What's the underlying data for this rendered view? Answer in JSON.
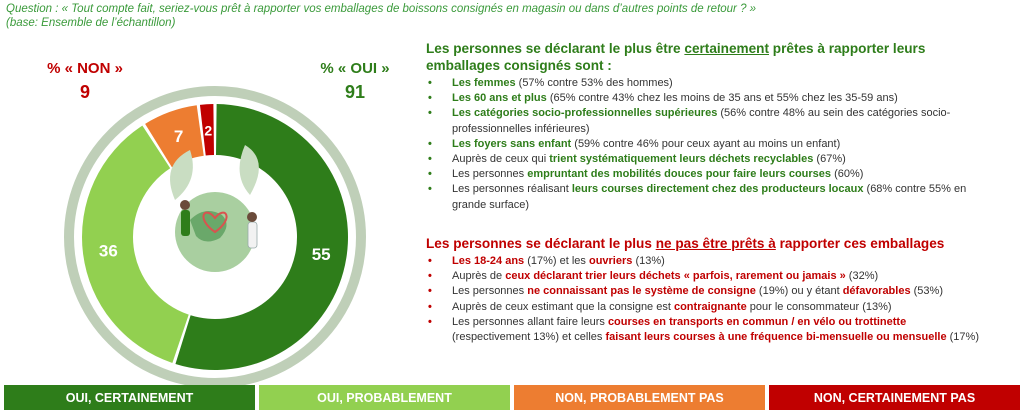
{
  "header": {
    "question": "Question : « Tout compte fait, seriez-vous prêt à rapporter vos emballages de boissons consignés en magasin ou dans d’autres points de retour ? »",
    "base": "(base: Ensemble de l’échantillon)"
  },
  "totals": {
    "non_label": "% « NON »",
    "non_value": "9",
    "oui_label": "% « OUI »",
    "oui_value": "91"
  },
  "colors": {
    "oui_certainement": "#2e7d1a",
    "oui_probablement": "#92d050",
    "non_probablement_pas": "#ed7d31",
    "non_certainement_pas": "#c00000",
    "ring": "#bfcfb8"
  },
  "chart_data": {
    "type": "pie",
    "donut": true,
    "categories": [
      "OUI, CERTAINEMENT",
      "OUI, PROBABLEMENT",
      "NON, PROBABLEMENT PAS",
      "NON, CERTAINEMENT PAS"
    ],
    "values": [
      55,
      36,
      7,
      2
    ],
    "labels": [
      "55",
      "36",
      "7",
      "2"
    ],
    "legend_position": "bottom"
  },
  "positive": {
    "title_before": "Les personnes se déclarant le plus être ",
    "title_underlined": "certainement",
    "title_after": " prêtes à rapporter leurs emballages consignés sont  :",
    "items": [
      {
        "bold": "Les femmes",
        "text": " (57% contre 53% des hommes)"
      },
      {
        "bold": "Les 60 ans et plus",
        "text": " (65% contre 43% chez les moins de 35 ans et 55% chez les 35-59 ans)"
      },
      {
        "bold": "Les catégories socio-professionnelles supérieures",
        "text": " (56% contre 48% au sein des catégories socio-professionnelles inférieures)"
      },
      {
        "bold": "Les foyers sans enfant",
        "text": " (59% contre 46% pour ceux ayant au moins un enfant)"
      },
      {
        "pre": "Auprès de ceux qui ",
        "bold": "trient systématiquement leurs déchets recyclables",
        "text": " (67%)"
      },
      {
        "pre": "Les personnes ",
        "bold": "empruntant des mobilités douces pour faire leurs courses",
        "text": " (60%)"
      },
      {
        "pre": "Les personnes réalisant ",
        "bold": "leurs courses directement chez des producteurs locaux",
        "text": " (68% contre 55% en grande surface)"
      }
    ]
  },
  "negative": {
    "title_before": "Les personnes se déclarant le plus ",
    "title_underlined": "ne pas être prêts à",
    "title_after": " rapporter ces emballages",
    "items": [
      {
        "bold": "Les 18-24 ans",
        "text": " (17%) et les ",
        "bold2": "ouvriers",
        "text2": " (13%)"
      },
      {
        "pre": "Auprès de ",
        "bold": "ceux déclarant trier leurs déchets « parfois, rarement ou jamais »",
        "text": " (32%)"
      },
      {
        "pre": "Les personnes ",
        "bold": "ne connaissant pas le système de consigne",
        "text": " (19%) ou y étant ",
        "bold2": "défavorables",
        "text2": " (53%)"
      },
      {
        "pre": "Auprès de ceux estimant que la consigne est ",
        "bold": "contraignante",
        "text": " pour le consommateur (13%)"
      },
      {
        "pre": "Les personnes allant faire leurs ",
        "bold": "courses en transports en commun / en vélo ou trottinette",
        "text": " (respectivement 13%) et celles ",
        "bold2": "faisant leurs courses à une fréquence bi-mensuelle ou mensuelle",
        "text2": " (17%)"
      }
    ]
  }
}
